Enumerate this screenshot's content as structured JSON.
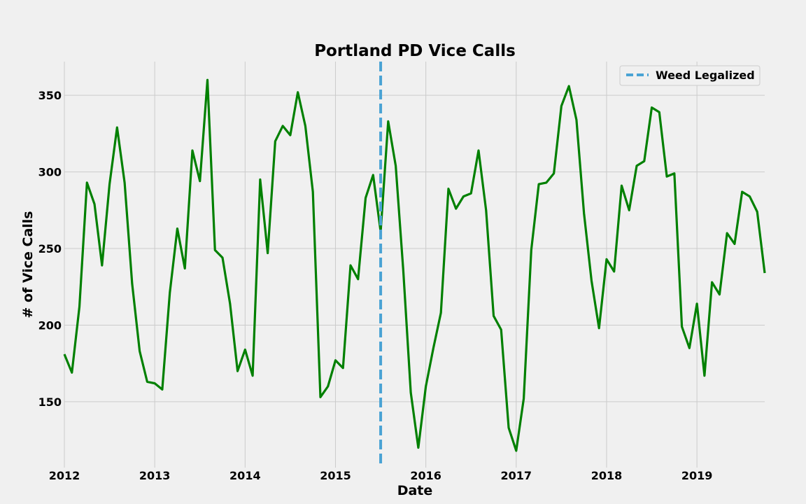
{
  "chart_data": {
    "type": "line",
    "title": "Portland PD Vice Calls",
    "xlabel": "Date",
    "ylabel": "# of Vice Calls",
    "x_ticks": [
      "2012",
      "2013",
      "2014",
      "2015",
      "2016",
      "2017",
      "2018",
      "2019"
    ],
    "y_ticks": [
      150,
      200,
      250,
      300,
      350
    ],
    "xlim": [
      "2012-01",
      "2019-10"
    ],
    "ylim": [
      107,
      372
    ],
    "grid": true,
    "legend_position": "top-right",
    "colors": {
      "series": "#008000",
      "event": "#4aa3d4",
      "background": "#f0f0f0",
      "grid": "#cbcbcb"
    },
    "series": [
      {
        "values": [
          {
            "x": "2012-01",
            "y": 181
          },
          {
            "x": "2012-02",
            "y": 169
          },
          {
            "x": "2012-03",
            "y": 212
          },
          {
            "x": "2012-04",
            "y": 293
          },
          {
            "x": "2012-05",
            "y": 279
          },
          {
            "x": "2012-06",
            "y": 239
          },
          {
            "x": "2012-07",
            "y": 292
          },
          {
            "x": "2012-08",
            "y": 329
          },
          {
            "x": "2012-09",
            "y": 293
          },
          {
            "x": "2012-10",
            "y": 227
          },
          {
            "x": "2012-11",
            "y": 183
          },
          {
            "x": "2012-12",
            "y": 163
          },
          {
            "x": "2013-01",
            "y": 162
          },
          {
            "x": "2013-02",
            "y": 158
          },
          {
            "x": "2013-03",
            "y": 221
          },
          {
            "x": "2013-04",
            "y": 263
          },
          {
            "x": "2013-05",
            "y": 237
          },
          {
            "x": "2013-06",
            "y": 314
          },
          {
            "x": "2013-07",
            "y": 294
          },
          {
            "x": "2013-08",
            "y": 360
          },
          {
            "x": "2013-09",
            "y": 249
          },
          {
            "x": "2013-10",
            "y": 244
          },
          {
            "x": "2013-11",
            "y": 214
          },
          {
            "x": "2013-12",
            "y": 170
          },
          {
            "x": "2014-01",
            "y": 184
          },
          {
            "x": "2014-02",
            "y": 167
          },
          {
            "x": "2014-03",
            "y": 295
          },
          {
            "x": "2014-04",
            "y": 247
          },
          {
            "x": "2014-05",
            "y": 320
          },
          {
            "x": "2014-06",
            "y": 330
          },
          {
            "x": "2014-07",
            "y": 324
          },
          {
            "x": "2014-08",
            "y": 352
          },
          {
            "x": "2014-09",
            "y": 330
          },
          {
            "x": "2014-10",
            "y": 287
          },
          {
            "x": "2014-11",
            "y": 153
          },
          {
            "x": "2014-12",
            "y": 160
          },
          {
            "x": "2015-01",
            "y": 177
          },
          {
            "x": "2015-02",
            "y": 172
          },
          {
            "x": "2015-03",
            "y": 239
          },
          {
            "x": "2015-04",
            "y": 230
          },
          {
            "x": "2015-05",
            "y": 283
          },
          {
            "x": "2015-06",
            "y": 298
          },
          {
            "x": "2015-07",
            "y": 261
          },
          {
            "x": "2015-08",
            "y": 333
          },
          {
            "x": "2015-09",
            "y": 304
          },
          {
            "x": "2015-10",
            "y": 236
          },
          {
            "x": "2015-11",
            "y": 156
          },
          {
            "x": "2015-12",
            "y": 120
          },
          {
            "x": "2016-01",
            "y": 160
          },
          {
            "x": "2016-02",
            "y": 185
          },
          {
            "x": "2016-03",
            "y": 208
          },
          {
            "x": "2016-04",
            "y": 289
          },
          {
            "x": "2016-05",
            "y": 276
          },
          {
            "x": "2016-06",
            "y": 284
          },
          {
            "x": "2016-07",
            "y": 286
          },
          {
            "x": "2016-08",
            "y": 314
          },
          {
            "x": "2016-09",
            "y": 275
          },
          {
            "x": "2016-10",
            "y": 206
          },
          {
            "x": "2016-11",
            "y": 197
          },
          {
            "x": "2016-12",
            "y": 133
          },
          {
            "x": "2017-01",
            "y": 118
          },
          {
            "x": "2017-02",
            "y": 152
          },
          {
            "x": "2017-03",
            "y": 249
          },
          {
            "x": "2017-04",
            "y": 292
          },
          {
            "x": "2017-05",
            "y": 293
          },
          {
            "x": "2017-06",
            "y": 299
          },
          {
            "x": "2017-07",
            "y": 343
          },
          {
            "x": "2017-08",
            "y": 356
          },
          {
            "x": "2017-09",
            "y": 334
          },
          {
            "x": "2017-10",
            "y": 273
          },
          {
            "x": "2017-11",
            "y": 229
          },
          {
            "x": "2017-12",
            "y": 198
          },
          {
            "x": "2018-01",
            "y": 243
          },
          {
            "x": "2018-02",
            "y": 235
          },
          {
            "x": "2018-03",
            "y": 291
          },
          {
            "x": "2018-04",
            "y": 275
          },
          {
            "x": "2018-05",
            "y": 304
          },
          {
            "x": "2018-06",
            "y": 307
          },
          {
            "x": "2018-07",
            "y": 342
          },
          {
            "x": "2018-08",
            "y": 339
          },
          {
            "x": "2018-09",
            "y": 297
          },
          {
            "x": "2018-10",
            "y": 299
          },
          {
            "x": "2018-11",
            "y": 199
          },
          {
            "x": "2018-12",
            "y": 185
          },
          {
            "x": "2019-01",
            "y": 214
          },
          {
            "x": "2019-02",
            "y": 167
          },
          {
            "x": "2019-03",
            "y": 228
          },
          {
            "x": "2019-04",
            "y": 220
          },
          {
            "x": "2019-05",
            "y": 260
          },
          {
            "x": "2019-06",
            "y": 253
          },
          {
            "x": "2019-07",
            "y": 287
          },
          {
            "x": "2019-08",
            "y": 284
          },
          {
            "x": "2019-09",
            "y": 274
          },
          {
            "x": "2019-10",
            "y": 234
          }
        ]
      }
    ],
    "annotations": [
      {
        "type": "vertical-dashed-line",
        "x": "2015-07",
        "label": "Weed Legalized"
      }
    ],
    "legend": [
      {
        "label": "Weed Legalized",
        "style": "dashed"
      }
    ]
  }
}
